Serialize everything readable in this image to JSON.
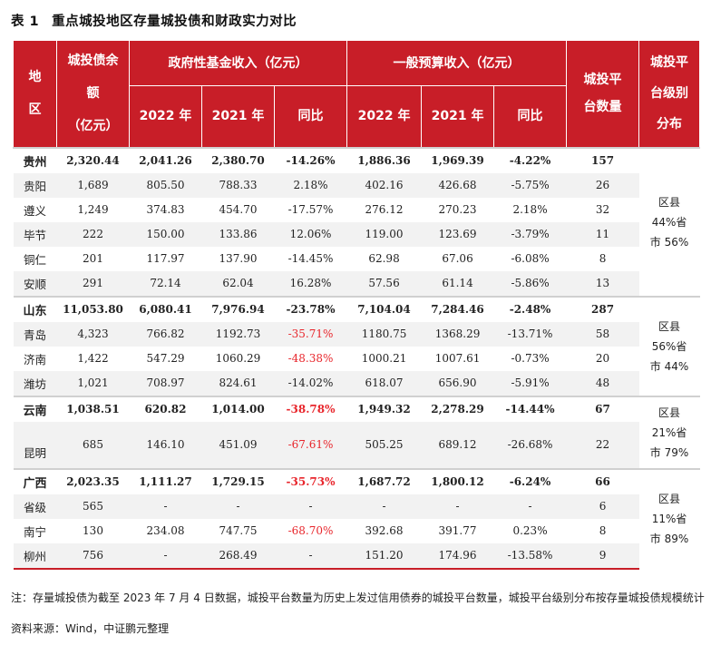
{
  "title": {
    "number": "表 1",
    "text": "重点城投地区存量城投债和财政实力对比"
  },
  "headers": {
    "region": [
      "地",
      "区"
    ],
    "debt": [
      "城投债余",
      "额",
      "（亿元）"
    ],
    "gov_fund": "政府性基金收入（亿元）",
    "general_budget": "一般预算收入（亿元）",
    "platform_count": [
      "城投平",
      "台数量"
    ],
    "level_dist": [
      "城投平",
      "台级别",
      "分布"
    ],
    "year_2022": "2022 年",
    "year_2021": "2021 年",
    "yoy": "同比"
  },
  "rows": [
    {
      "region": "贵州",
      "debt": "2,320.44",
      "gf22": "2,041.26",
      "gf21": "2,380.70",
      "gfyoy": "-14.26%",
      "gb22": "1,886.36",
      "gb21": "1,969.39",
      "gbyoy": "-4.22%",
      "count": "157"
    },
    {
      "region": "贵阳",
      "debt": "1,689",
      "gf22": "805.50",
      "gf21": "788.33",
      "gfyoy": "2.18%",
      "gb22": "402.16",
      "gb21": "426.68",
      "gbyoy": "-5.75%",
      "count": "26"
    },
    {
      "region": "遵义",
      "debt": "1,249",
      "gf22": "374.83",
      "gf21": "454.70",
      "gfyoy": "-17.57%",
      "gb22": "276.12",
      "gb21": "270.23",
      "gbyoy": "2.18%",
      "count": "32"
    },
    {
      "region": "毕节",
      "debt": "222",
      "gf22": "150.00",
      "gf21": "133.86",
      "gfyoy": "12.06%",
      "gb22": "119.00",
      "gb21": "123.69",
      "gbyoy": "-3.79%",
      "count": "11"
    },
    {
      "region": "铜仁",
      "debt": "201",
      "gf22": "117.97",
      "gf21": "137.90",
      "gfyoy": "-14.45%",
      "gb22": "62.98",
      "gb21": "67.06",
      "gbyoy": "-6.08%",
      "count": "8"
    },
    {
      "region": "安顺",
      "debt": "291",
      "gf22": "72.14",
      "gf21": "62.04",
      "gfyoy": "16.28%",
      "gb22": "57.56",
      "gb21": "61.14",
      "gbyoy": "-5.86%",
      "count": "13"
    },
    {
      "region": "山东",
      "debt": "11,053.80",
      "gf22": "6,080.41",
      "gf21": "7,976.94",
      "gfyoy": "-23.78%",
      "gb22": "7,104.04",
      "gb21": "7,284.46",
      "gbyoy": "-2.48%",
      "count": "287"
    },
    {
      "region": "青岛",
      "debt": "4,323",
      "gf22": "766.82",
      "gf21": "1192.73",
      "gfyoy": "-35.71%",
      "gb22": "1180.75",
      "gb21": "1368.29",
      "gbyoy": "-13.71%",
      "count": "58"
    },
    {
      "region": "济南",
      "debt": "1,422",
      "gf22": "547.29",
      "gf21": "1060.29",
      "gfyoy": "-48.38%",
      "gb22": "1000.21",
      "gb21": "1007.61",
      "gbyoy": "-0.73%",
      "count": "20"
    },
    {
      "region": "潍坊",
      "debt": "1,021",
      "gf22": "708.97",
      "gf21": "824.61",
      "gfyoy": "-14.02%",
      "gb22": "618.07",
      "gb21": "656.90",
      "gbyoy": "-5.91%",
      "count": "48"
    },
    {
      "region": "云南",
      "debt": "1,038.51",
      "gf22": "620.82",
      "gf21": "1,014.00",
      "gfyoy": "-38.78%",
      "gb22": "1,949.32",
      "gb21": "2,278.29",
      "gbyoy": "-14.44%",
      "count": "67"
    },
    {
      "region": "昆明",
      "debt": "685",
      "gf22": "146.10",
      "gf21": "451.09",
      "gfyoy": "-67.61%",
      "gb22": "505.25",
      "gb21": "689.12",
      "gbyoy": "-26.68%",
      "count": "22"
    },
    {
      "region": "广西",
      "debt": "2,023.35",
      "gf22": "1,111.27",
      "gf21": "1,729.15",
      "gfyoy": "-35.73%",
      "gb22": "1,687.72",
      "gb21": "1,800.12",
      "gbyoy": "-6.24%",
      "count": "66"
    },
    {
      "region": "省级",
      "debt": "565",
      "gf22": "-",
      "gf21": "-",
      "gfyoy": "-",
      "gb22": "-",
      "gb21": "-",
      "gbyoy": "-",
      "count": "6"
    },
    {
      "region": "南宁",
      "debt": "130",
      "gf22": "234.08",
      "gf21": "747.75",
      "gfyoy": "-68.70%",
      "gb22": "392.68",
      "gb21": "391.77",
      "gbyoy": "0.23%",
      "count": "8"
    },
    {
      "region": "柳州",
      "debt": "756",
      "gf22": "-",
      "gf21": "268.49",
      "gfyoy": "-",
      "gb22": "151.20",
      "gb21": "174.96",
      "gbyoy": "-13.58%",
      "count": "9"
    }
  ],
  "distribution": [
    {
      "line1": "区县",
      "line2": "44%省",
      "line3": "市 56%"
    },
    {
      "line1": "区县",
      "line2": "56%省",
      "line3": "市 44%"
    },
    {
      "line1": "区县",
      "line2": "21%省",
      "line3": "市 79%"
    },
    {
      "line1": "区县",
      "line2": "11%省",
      "line3": "市 89%"
    }
  ],
  "note": "注：存量城投债为截至 2023 年 7 月 4 日数据，城投平台数量为历史上发过信用债券的城投平台数量，城投平台级别分布按存量城投债规模统计",
  "source": "资料来源：Wind，中证鹏元整理",
  "colors": {
    "header_bg": "#c81e28",
    "negative_highlight": "#e8262c",
    "zebra": "#f2f2f2"
  }
}
